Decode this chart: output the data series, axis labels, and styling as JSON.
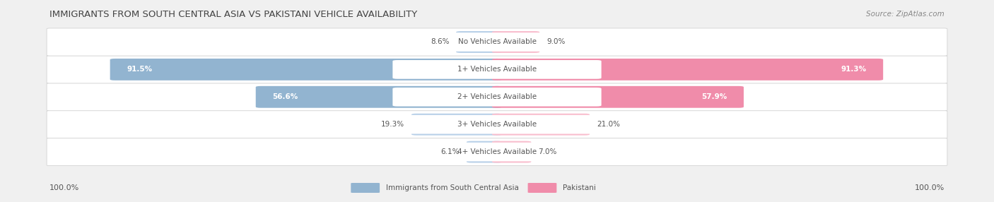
{
  "title": "IMMIGRANTS FROM SOUTH CENTRAL ASIA VS PAKISTANI VEHICLE AVAILABILITY",
  "source": "Source: ZipAtlas.com",
  "categories": [
    "No Vehicles Available",
    "1+ Vehicles Available",
    "2+ Vehicles Available",
    "3+ Vehicles Available",
    "4+ Vehicles Available"
  ],
  "left_values": [
    8.6,
    91.5,
    56.6,
    19.3,
    6.1
  ],
  "right_values": [
    9.0,
    91.3,
    57.9,
    21.0,
    7.0
  ],
  "left_color": "#92b4d0",
  "right_color": "#f08caa",
  "left_color_light": "#b8d0e8",
  "right_color_light": "#f9bece",
  "left_label": "Immigrants from South Central Asia",
  "right_label": "Pakistani",
  "bg_color": "#f0f0f0",
  "row_bg": "#ebebeb",
  "max_value": 100.0,
  "label_threshold": 25.0,
  "legend_left_value": "100.0%",
  "legend_right_value": "100.0%"
}
